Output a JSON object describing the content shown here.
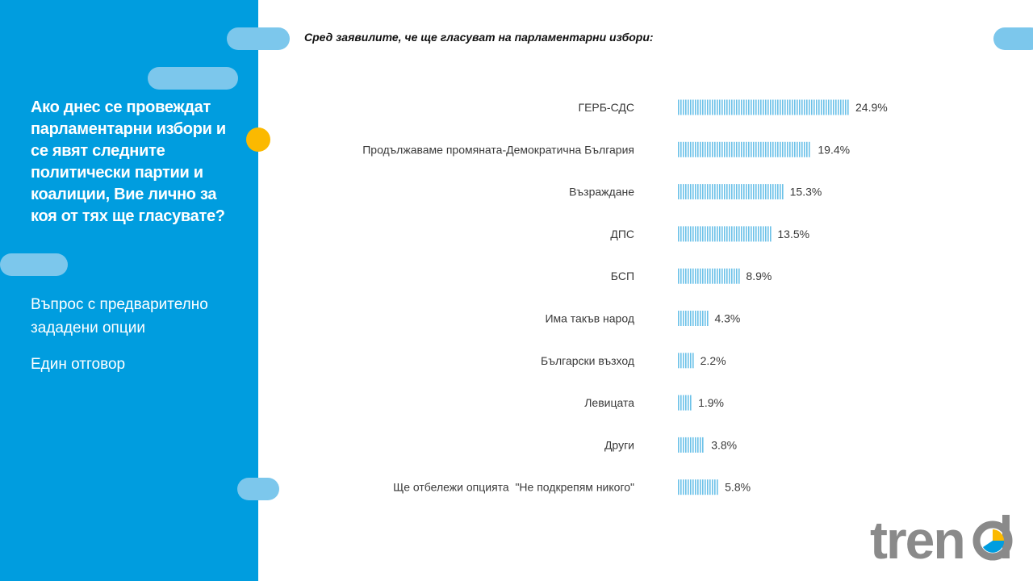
{
  "sidebar": {
    "question": "Ако днес се провеждат парламентарни избори и се явят следните политически партии и коалиции, Вие лично за коя от тях ще гласувате?",
    "note_1": "Въпрос с предварително зададени опции",
    "note_2": "Един отговор"
  },
  "colors": {
    "sidebar": "#009ddf",
    "accent_pill": "#7cc7ec",
    "accent_dot": "#fbb900",
    "bar": "#6cc1e8",
    "logo_gray": "#8a8a8a"
  },
  "logo": {
    "text": "trend"
  },
  "chart_data": {
    "type": "bar",
    "orientation": "horizontal",
    "title": "Сред заявилите, че ще гласуват на парламентарни избори:",
    "categories": [
      "ГЕРБ-СДС",
      "Продължаваме промяната-Демократична България",
      "Възраждане",
      "ДПС",
      "БСП",
      "Има такъв народ",
      "Български възход",
      "Левицата",
      "Други",
      "Ще отбележи опцията  \"Не подкрепям никого\""
    ],
    "values": [
      24.9,
      19.4,
      15.3,
      13.5,
      8.9,
      4.3,
      2.2,
      1.9,
      3.8,
      5.8
    ],
    "value_labels": [
      "24.9%",
      "19.4%",
      "15.3%",
      "13.5%",
      "8.9%",
      "4.3%",
      "2.2%",
      "1.9%",
      "3.8%",
      "5.8%"
    ],
    "unit": "%",
    "grid": false,
    "legend": "none"
  }
}
